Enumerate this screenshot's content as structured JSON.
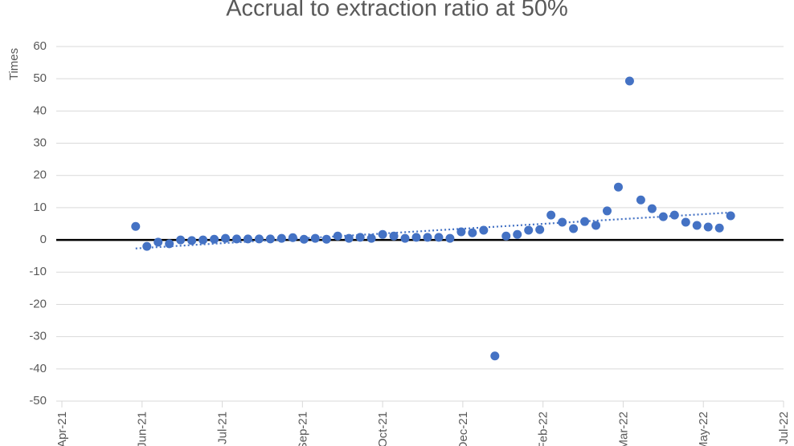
{
  "chart_data": {
    "type": "scatter",
    "title": "Accrual to extraction ratio at 50%",
    "y_label": "Times",
    "color": "#4472c4",
    "grid": true,
    "trendline": "linear",
    "xlim": [
      44298,
      44748
    ],
    "xticks": [
      {
        "value": 44298,
        "label": "Apr-21"
      },
      {
        "value": 44348,
        "label": "Jun-21"
      },
      {
        "value": 44398,
        "label": "Jul-21"
      },
      {
        "value": 44448,
        "label": "Sep-21"
      },
      {
        "value": 44498,
        "label": "Oct-21"
      },
      {
        "value": 44548,
        "label": "Dec-21"
      },
      {
        "value": 44598,
        "label": "Feb-22"
      },
      {
        "value": 44648,
        "label": "Mar-22"
      },
      {
        "value": 44698,
        "label": "May-22"
      },
      {
        "value": 44748,
        "label": "Jul-22"
      }
    ],
    "ylim": [
      -50,
      60
    ],
    "yticks": [
      -50,
      -40,
      -30,
      -20,
      -10,
      0,
      10,
      20,
      30,
      40,
      50,
      60
    ],
    "x": [
      44344,
      44351,
      44358,
      44365,
      44372,
      44379,
      44386,
      44393,
      44400,
      44407,
      44414,
      44421,
      44428,
      44435,
      44442,
      44449,
      44456,
      44463,
      44470,
      44477,
      44484,
      44491,
      44498,
      44505,
      44512,
      44519,
      44526,
      44533,
      44540,
      44547,
      44554,
      44561,
      44568,
      44575,
      44582,
      44589,
      44596,
      44603,
      44610,
      44617,
      44624,
      44631,
      44638,
      44645,
      44652,
      44659,
      44666,
      44673,
      44680,
      44687,
      44694,
      44701,
      44708,
      44715
    ],
    "values": [
      4.2,
      -2,
      -0.7,
      -1.2,
      0,
      -0.2,
      0,
      0.2,
      0.5,
      0.3,
      0.3,
      0.3,
      0.3,
      0.5,
      0.7,
      0.2,
      0.5,
      0.2,
      1.2,
      0.5,
      0.8,
      0.5,
      1.7,
      1.2,
      0.5,
      0.8,
      0.8,
      0.8,
      0.5,
      2.5,
      2.2,
      3,
      -36,
      1.2,
      1.7,
      3,
      3.2,
      7.7,
      5.5,
      3.5,
      5.7,
      4.5,
      9,
      16.4,
      49.3,
      12.4,
      9.7,
      7.2,
      7.7,
      5.5,
      4.5,
      4,
      3.7,
      7.5
    ]
  }
}
